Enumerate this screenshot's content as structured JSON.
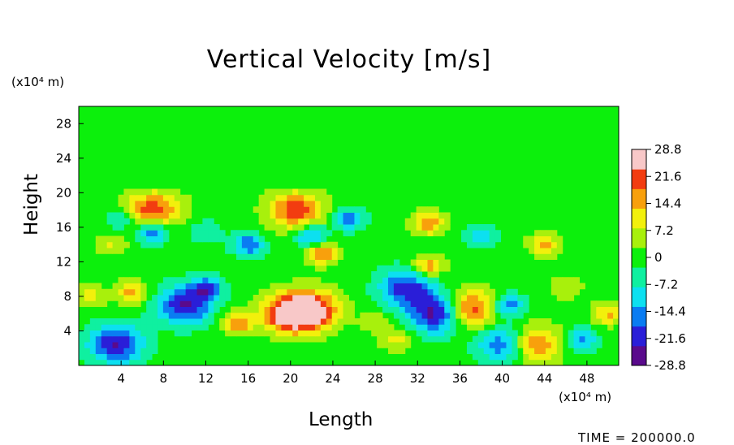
{
  "chart_data": {
    "type": "heatmap",
    "title": "Vertical Velocity [m/s]",
    "xlabel": "Length",
    "ylabel": "Height",
    "x_unit": "(x10⁴ m)",
    "y_unit": "(x10⁴ m)",
    "xlim": [
      0,
      51
    ],
    "ylim": [
      0,
      30
    ],
    "x_ticks": [
      4,
      8,
      12,
      16,
      20,
      24,
      28,
      32,
      36,
      40,
      44,
      48
    ],
    "y_ticks": [
      4,
      8,
      12,
      16,
      20,
      24,
      28
    ],
    "colorbar": {
      "range": [
        -28.8,
        28.8
      ],
      "tick_values": [
        28.8,
        21.6,
        14.4,
        7.2,
        0,
        -7.2,
        -14.4,
        -21.6,
        -28.8
      ],
      "tick_labels": [
        "28.8",
        "21.6",
        "14.4",
        "7.2",
        "0",
        "-7.2",
        "-14.4",
        "-21.6",
        "-28.8"
      ],
      "colormap": [
        "#5a0a8c",
        "#2a1ed8",
        "#0a7cf2",
        "#0ce0f0",
        "#0ff0a0",
        "#0cf00c",
        "#a8f00c",
        "#f2f00c",
        "#f8a00c",
        "#f23c10",
        "#f8c8c8"
      ]
    },
    "features": [
      {
        "x": 20,
        "y": 6,
        "w": 28.8
      },
      {
        "x": 22,
        "y": 6.5,
        "w": 24
      },
      {
        "x": 15,
        "y": 5,
        "w": 18
      },
      {
        "x": 34,
        "y": 6,
        "w": -28.8
      },
      {
        "x": 31,
        "y": 9,
        "w": -21.6
      },
      {
        "x": 36.8,
        "y": 6.5,
        "w": 26
      },
      {
        "x": 42.6,
        "y": 2.5,
        "w": 26
      },
      {
        "x": 40.5,
        "y": 2.5,
        "w": -25
      },
      {
        "x": 3.5,
        "y": 2.5,
        "w": -24
      },
      {
        "x": 10,
        "y": 7,
        "w": -24
      },
      {
        "x": 12,
        "y": 9,
        "w": -18
      },
      {
        "x": 5,
        "y": 8.5,
        "w": 16
      },
      {
        "x": 7,
        "y": 18,
        "w": 22
      },
      {
        "x": 7,
        "y": 15.5,
        "w": -20
      },
      {
        "x": 20.5,
        "y": 18,
        "w": 22
      },
      {
        "x": 23,
        "y": 13,
        "w": 18
      },
      {
        "x": 33,
        "y": 16.5,
        "w": 18
      },
      {
        "x": 33,
        "y": 11.5,
        "w": 18
      },
      {
        "x": 25.5,
        "y": 17,
        "w": -16
      },
      {
        "x": 16,
        "y": 14,
        "w": -18
      },
      {
        "x": 22,
        "y": 15,
        "w": -18
      },
      {
        "x": 40.5,
        "y": 7,
        "w": -18
      },
      {
        "x": 47.5,
        "y": 3,
        "w": -14
      },
      {
        "x": 30,
        "y": 3,
        "w": 10
      },
      {
        "x": 1,
        "y": 8,
        "w": 10
      },
      {
        "x": 50,
        "y": 6,
        "w": 14
      },
      {
        "x": 44,
        "y": 14,
        "w": 14
      },
      {
        "x": 3,
        "y": 14,
        "w": 8
      },
      {
        "x": 4,
        "y": 17,
        "w": -10
      },
      {
        "x": 38,
        "y": 15,
        "w": -10
      },
      {
        "x": 28,
        "y": 5,
        "w": 6
      },
      {
        "x": 46,
        "y": 9,
        "w": 8
      },
      {
        "x": 12,
        "y": 15.5,
        "w": -8
      }
    ]
  },
  "timestamp": "TIME =  200000.0"
}
